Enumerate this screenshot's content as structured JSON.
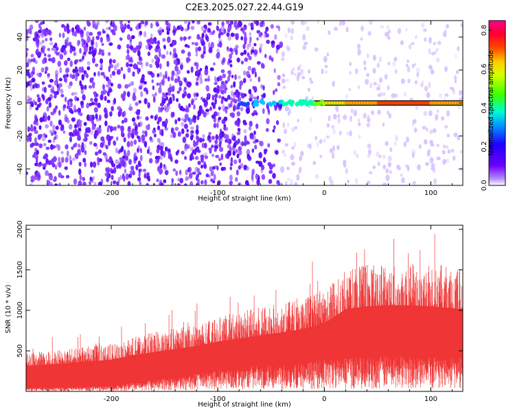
{
  "figure": {
    "title": "C2E3.2025.027.22.44.G19"
  },
  "chart_data": [
    {
      "type": "heatmap",
      "xlabel": "Height of straight line (km)",
      "ylabel": "Frequency (Hz)",
      "xlim": [
        -280,
        130
      ],
      "ylim": [
        -50,
        50
      ],
      "xticks": [
        -200,
        -100,
        0,
        100
      ],
      "yticks": [
        -40,
        -20,
        0,
        20,
        40
      ],
      "colorbar": {
        "label": "Normalized spectral amplitude",
        "range": [
          0.0,
          0.85
        ],
        "ticks": [
          0.0,
          0.2,
          0.4,
          0.6,
          0.8
        ],
        "colormap": "rainbow (purple → blue → cyan → green → yellow → red → magenta)"
      },
      "noise_floor": {
        "amplitude": 0.03,
        "density_left": "high",
        "density_right": "low",
        "transition_km": -40
      },
      "signal_line": {
        "frequency_hz": 0,
        "x_start": -80,
        "x_end": 130,
        "amplitude_points": [
          {
            "x": -80,
            "amp": 0.25
          },
          {
            "x": -60,
            "amp": 0.32
          },
          {
            "x": -45,
            "amp": 0.38
          },
          {
            "x": -35,
            "amp": 0.42
          },
          {
            "x": -20,
            "amp": 0.45
          },
          {
            "x": 0,
            "amp": 0.55
          },
          {
            "x": 20,
            "amp": 0.6
          },
          {
            "x": 50,
            "amp": 0.65
          },
          {
            "x": 100,
            "amp": 0.65
          },
          {
            "x": 130,
            "amp": 0.62
          }
        ]
      },
      "isolated_points": [
        {
          "x": -127,
          "y": -10,
          "amp": 0.18
        }
      ],
      "grid": false
    },
    {
      "type": "area",
      "xlabel": "Height of straight line (km)",
      "ylabel": "SNR (10 * v/v)",
      "xlim": [
        -280,
        130
      ],
      "ylim": [
        0,
        2050
      ],
      "xticks": [
        -200,
        -100,
        0,
        100
      ],
      "yticks": [
        500,
        1000,
        1500,
        2000
      ],
      "series": [
        {
          "color": "#ef3535",
          "envelope_x": [
            -280,
            -240,
            -200,
            -180,
            -150,
            -120,
            -100,
            -80,
            -60,
            -40,
            -20,
            0,
            20,
            40,
            60,
            80,
            100,
            130
          ],
          "envelope_high": [
            450,
            500,
            560,
            640,
            720,
            800,
            880,
            930,
            990,
            1040,
            1100,
            1200,
            1450,
            1500,
            1520,
            1520,
            1500,
            1450
          ],
          "envelope_low": [
            30,
            40,
            50,
            80,
            120,
            170,
            200,
            220,
            250,
            270,
            280,
            300,
            320,
            330,
            340,
            340,
            330,
            320
          ],
          "peak_max": 2030
        }
      ],
      "grid": false
    }
  ]
}
